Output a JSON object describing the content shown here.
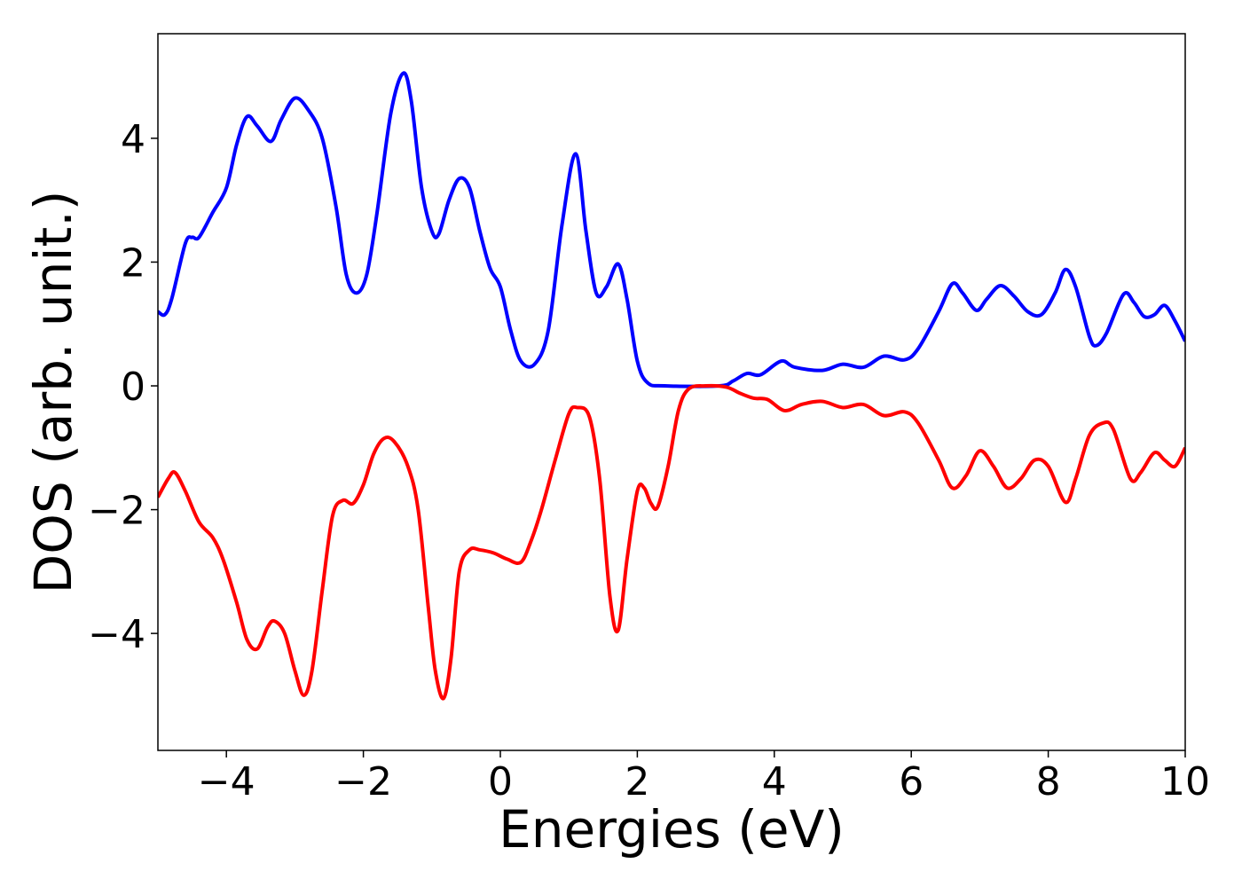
{
  "chart_data": {
    "type": "line",
    "x_label": "Energies (eV)",
    "y_label": "DOS (arb. unit.)",
    "xlim": [
      -5,
      10
    ],
    "ylim": [
      -5.89,
      5.69
    ],
    "xticks": [
      {
        "value": -4,
        "label": "−4"
      },
      {
        "value": -2,
        "label": "−2"
      },
      0,
      2,
      4,
      6,
      8,
      10
    ],
    "yticks": [
      {
        "value": -4,
        "label": "−4"
      },
      {
        "value": -2,
        "label": "−2"
      },
      0,
      2,
      4
    ],
    "grid": false,
    "series": [
      {
        "color": "#0000ff",
        "x": [
          -5,
          -4.9,
          -4.8,
          -4.6,
          -4.5,
          -4.4,
          -4.2,
          -4.0,
          -3.85,
          -3.7,
          -3.55,
          -3.35,
          -3.2,
          -3.0,
          -2.8,
          -2.6,
          -2.4,
          -2.25,
          -2.1,
          -1.95,
          -1.8,
          -1.6,
          -1.42,
          -1.3,
          -1.15,
          -1.0,
          -0.9,
          -0.75,
          -0.6,
          -0.45,
          -0.3,
          -0.15,
          0,
          0.15,
          0.3,
          0.5,
          0.7,
          0.9,
          1.1,
          1.25,
          1.4,
          1.55,
          1.72,
          1.85,
          2.0,
          2.15,
          2.4,
          3.2,
          3.4,
          3.6,
          3.8,
          4.1,
          4.3,
          4.7,
          5.0,
          5.3,
          5.6,
          5.9,
          6.1,
          6.4,
          6.6,
          6.75,
          6.95,
          7.1,
          7.3,
          7.5,
          7.7,
          7.9,
          8.1,
          8.25,
          8.4,
          8.6,
          8.7,
          8.85,
          9.1,
          9.25,
          9.4,
          9.55,
          9.7,
          9.85,
          10
        ],
        "values": [
          1.2,
          1.15,
          1.4,
          2.3,
          2.4,
          2.4,
          2.8,
          3.2,
          3.9,
          4.35,
          4.2,
          3.95,
          4.3,
          4.65,
          4.45,
          4.0,
          2.9,
          1.8,
          1.5,
          1.8,
          2.8,
          4.4,
          5.05,
          4.6,
          3.2,
          2.5,
          2.45,
          3.0,
          3.35,
          3.2,
          2.5,
          1.9,
          1.6,
          0.9,
          0.4,
          0.35,
          0.9,
          2.6,
          3.75,
          2.5,
          1.5,
          1.6,
          1.97,
          1.4,
          0.4,
          0.05,
          0.0,
          0.0,
          0.08,
          0.2,
          0.18,
          0.4,
          0.3,
          0.25,
          0.35,
          0.3,
          0.48,
          0.42,
          0.6,
          1.2,
          1.65,
          1.5,
          1.22,
          1.4,
          1.62,
          1.45,
          1.2,
          1.15,
          1.5,
          1.88,
          1.6,
          0.8,
          0.65,
          0.85,
          1.48,
          1.35,
          1.12,
          1.15,
          1.3,
          1.05,
          0.72
        ]
      },
      {
        "color": "#ff0000",
        "x": [
          -5,
          -4.85,
          -4.75,
          -4.6,
          -4.4,
          -4.2,
          -4.05,
          -3.85,
          -3.7,
          -3.55,
          -3.4,
          -3.3,
          -3.15,
          -3.0,
          -2.87,
          -2.75,
          -2.6,
          -2.45,
          -2.3,
          -2.15,
          -2.0,
          -1.85,
          -1.7,
          -1.55,
          -1.35,
          -1.2,
          -1.05,
          -0.95,
          -0.83,
          -0.72,
          -0.6,
          -0.45,
          -0.3,
          -0.1,
          0.1,
          0.3,
          0.45,
          0.6,
          0.8,
          1.0,
          1.12,
          1.3,
          1.45,
          1.6,
          1.72,
          1.85,
          2.0,
          2.1,
          2.2,
          2.3,
          2.45,
          2.6,
          2.75,
          3.0,
          3.3,
          3.5,
          3.7,
          3.9,
          4.15,
          4.4,
          4.7,
          5.0,
          5.3,
          5.6,
          5.9,
          6.1,
          6.4,
          6.6,
          6.8,
          7.0,
          7.2,
          7.4,
          7.6,
          7.8,
          8.0,
          8.25,
          8.4,
          8.6,
          8.8,
          8.95,
          9.2,
          9.35,
          9.55,
          9.7,
          9.85,
          10
        ],
        "values": [
          -1.8,
          -1.5,
          -1.4,
          -1.7,
          -2.2,
          -2.45,
          -2.8,
          -3.5,
          -4.1,
          -4.25,
          -3.9,
          -3.8,
          -4.0,
          -4.6,
          -5.0,
          -4.6,
          -3.3,
          -2.1,
          -1.85,
          -1.9,
          -1.6,
          -1.1,
          -0.85,
          -0.9,
          -1.3,
          -2.0,
          -3.6,
          -4.6,
          -5.05,
          -4.4,
          -3.0,
          -2.65,
          -2.65,
          -2.7,
          -2.8,
          -2.85,
          -2.5,
          -2.0,
          -1.2,
          -0.45,
          -0.35,
          -0.5,
          -1.5,
          -3.4,
          -3.95,
          -2.8,
          -1.7,
          -1.65,
          -1.9,
          -1.95,
          -1.3,
          -0.4,
          -0.05,
          0.0,
          -0.02,
          -0.12,
          -0.2,
          -0.22,
          -0.4,
          -0.3,
          -0.25,
          -0.35,
          -0.3,
          -0.48,
          -0.42,
          -0.6,
          -1.2,
          -1.65,
          -1.45,
          -1.05,
          -1.3,
          -1.65,
          -1.5,
          -1.2,
          -1.3,
          -1.88,
          -1.5,
          -0.8,
          -0.6,
          -0.7,
          -1.5,
          -1.4,
          -1.08,
          -1.2,
          -1.3,
          -1.0
        ]
      }
    ]
  }
}
